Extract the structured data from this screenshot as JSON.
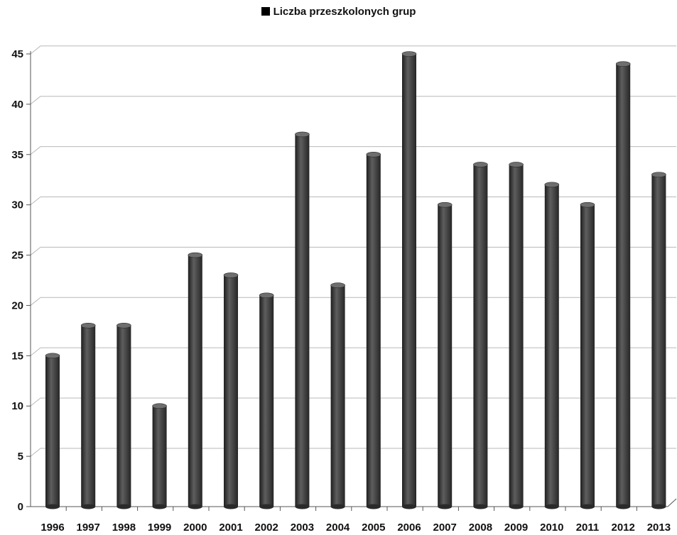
{
  "chart_data": {
    "type": "bar",
    "title": "",
    "xlabel": "",
    "ylabel": "",
    "legend": {
      "label": "Liczba przeszkolonych grup",
      "position": "top-center",
      "color": "#000000"
    },
    "categories": [
      "1996",
      "1997",
      "1998",
      "1999",
      "2000",
      "2001",
      "2002",
      "2003",
      "2004",
      "2005",
      "2006",
      "2007",
      "2008",
      "2009",
      "2010",
      "2011",
      "2012",
      "2013"
    ],
    "series": [
      {
        "name": "Liczba przeszkolonych grup",
        "values": [
          15,
          18,
          18,
          10,
          25,
          23,
          21,
          37,
          22,
          35,
          45,
          30,
          34,
          34,
          32,
          30,
          44,
          33
        ]
      }
    ],
    "ylim": [
      0,
      45
    ],
    "yticks": [
      "0",
      "5",
      "10",
      "15",
      "20",
      "25",
      "30",
      "35",
      "40",
      "45"
    ],
    "grid": true,
    "style": {
      "bar_color": "#3a3a3a",
      "grid_color": "#b8b8b8"
    }
  }
}
